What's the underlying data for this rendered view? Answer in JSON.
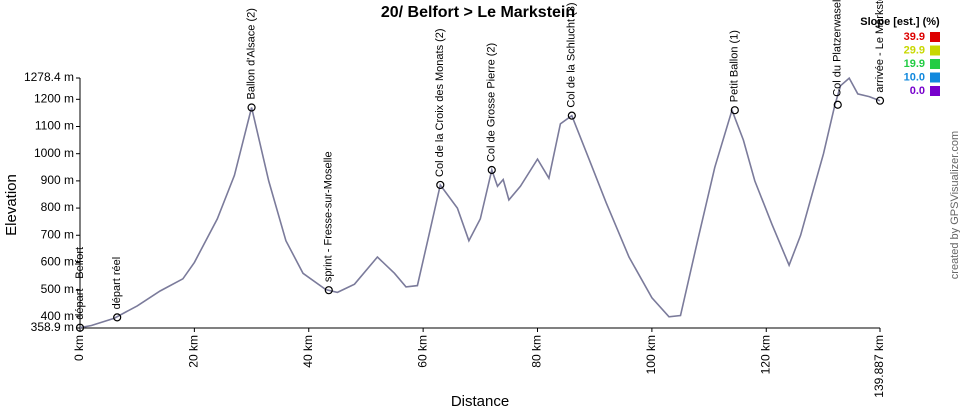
{
  "chart_data": {
    "type": "line",
    "title": "20/ Belfort > Le Markstein",
    "x_label": "Distance",
    "y_label": "Elevation",
    "credit": "created by GPSVisualizer.com",
    "x": [
      0,
      2,
      6,
      10,
      14,
      18,
      20,
      24,
      27,
      30,
      33,
      36,
      39,
      43,
      45,
      48,
      52,
      55,
      57,
      59,
      61,
      63,
      66,
      68,
      70,
      72,
      73,
      74,
      75,
      77,
      80,
      82,
      84,
      86,
      89,
      92,
      96,
      100,
      103,
      105,
      108,
      111,
      114,
      116,
      118,
      121,
      124,
      126,
      128,
      130,
      132,
      133,
      134.5,
      136,
      138,
      139.887
    ],
    "values": [
      360,
      368,
      395,
      440,
      495,
      540,
      600,
      760,
      920,
      1170,
      900,
      680,
      560,
      500,
      490,
      520,
      620,
      560,
      510,
      515,
      700,
      885,
      800,
      680,
      760,
      940,
      880,
      905,
      830,
      880,
      980,
      910,
      1110,
      1140,
      980,
      820,
      620,
      470,
      400,
      405,
      680,
      950,
      1160,
      1050,
      900,
      740,
      590,
      700,
      850,
      1000,
      1180,
      1250,
      1278,
      1220,
      1210,
      1195
    ],
    "color": "#7b7b9b",
    "xlim": [
      0,
      139.887
    ],
    "xticks": [
      {
        "value": 0,
        "label": "0 km"
      },
      {
        "value": 20,
        "label": "20 km"
      },
      {
        "value": 40,
        "label": "40 km"
      },
      {
        "value": 60,
        "label": "60 km"
      },
      {
        "value": 80,
        "label": "80 km"
      },
      {
        "value": 100,
        "label": "100 km"
      },
      {
        "value": 120,
        "label": "120 km"
      },
      {
        "value": 139.887,
        "label": "139.887 km"
      }
    ],
    "ylim": [
      358.9,
      1278.4
    ],
    "yticks": [
      {
        "value": 358.9,
        "label": "358.9 m"
      },
      {
        "value": 400,
        "label": "400 m"
      },
      {
        "value": 500,
        "label": "500 m"
      },
      {
        "value": 600,
        "label": "600 m"
      },
      {
        "value": 700,
        "label": "700 m"
      },
      {
        "value": 800,
        "label": "800 m"
      },
      {
        "value": 900,
        "label": "900 m"
      },
      {
        "value": 1000,
        "label": "1000 m"
      },
      {
        "value": 1100,
        "label": "1100 m"
      },
      {
        "value": 1200,
        "label": "1200 m"
      },
      {
        "value": 1278.4,
        "label": "1278.4 m"
      }
    ],
    "annotations": [
      {
        "label": "départ - Belfort",
        "x": 0,
        "y": 360
      },
      {
        "label": "départ réel",
        "x": 6.5,
        "y": 398
      },
      {
        "label": "Ballon d'Alsace (2)",
        "x": 30,
        "y": 1170
      },
      {
        "label": "sprint - Fresse-sur-Moselle",
        "x": 43.5,
        "y": 498
      },
      {
        "label": "Col de la Croix des Monats (2)",
        "x": 63,
        "y": 885
      },
      {
        "label": "Col de Grosse Pierre (2)",
        "x": 72,
        "y": 940
      },
      {
        "label": "Col de la Schlucht (3)",
        "x": 86,
        "y": 1140
      },
      {
        "label": "Petit Ballon (1)",
        "x": 114.5,
        "y": 1160
      },
      {
        "label": "Col du Platzerwasel",
        "x": 132.5,
        "y": 1180
      },
      {
        "label": "arrivée - Le Markstein",
        "x": 139.887,
        "y": 1195
      }
    ],
    "legend": {
      "title": "Slope [est.] (%)",
      "items": [
        {
          "label": "39.9",
          "color": "#dd0000"
        },
        {
          "label": "29.9",
          "color": "#c8d800"
        },
        {
          "label": "19.9",
          "color": "#22cc44"
        },
        {
          "label": "10.0",
          "color": "#1188dd"
        },
        {
          "label": "0.0",
          "color": "#7700cc"
        }
      ]
    }
  }
}
